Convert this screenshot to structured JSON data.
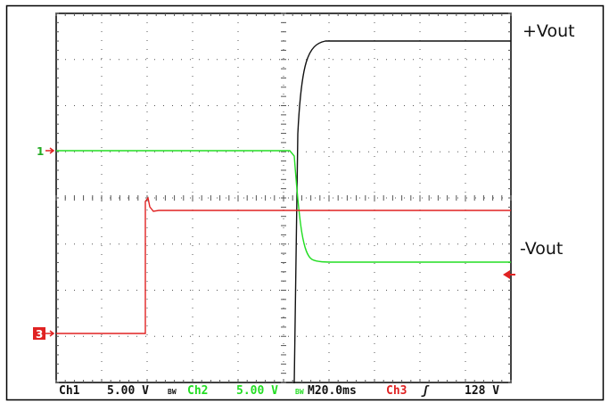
{
  "annotations": {
    "positive_output": "+Vout",
    "negative_output": "-Vout"
  },
  "markers": {
    "ch1": "1",
    "ch3": "3"
  },
  "status": {
    "ch1_label": "Ch1",
    "ch1_scale": "5.00 V",
    "bw_symbol_1": "BW",
    "ch2_label": "Ch2",
    "ch2_scale": "5.00 V",
    "bw_symbol_2": "BW",
    "timebase": "M20.0ms",
    "trigger_source": "Ch3",
    "trigger_slope": "ʃ",
    "trigger_level": "128 V"
  },
  "colors": {
    "ch1": "#111111",
    "ch2": "#22dd22",
    "ch3": "#e02222",
    "grid": "#555555",
    "frame": "#000000"
  },
  "screen": {
    "divisions_x": 10,
    "divisions_y": 8
  }
}
